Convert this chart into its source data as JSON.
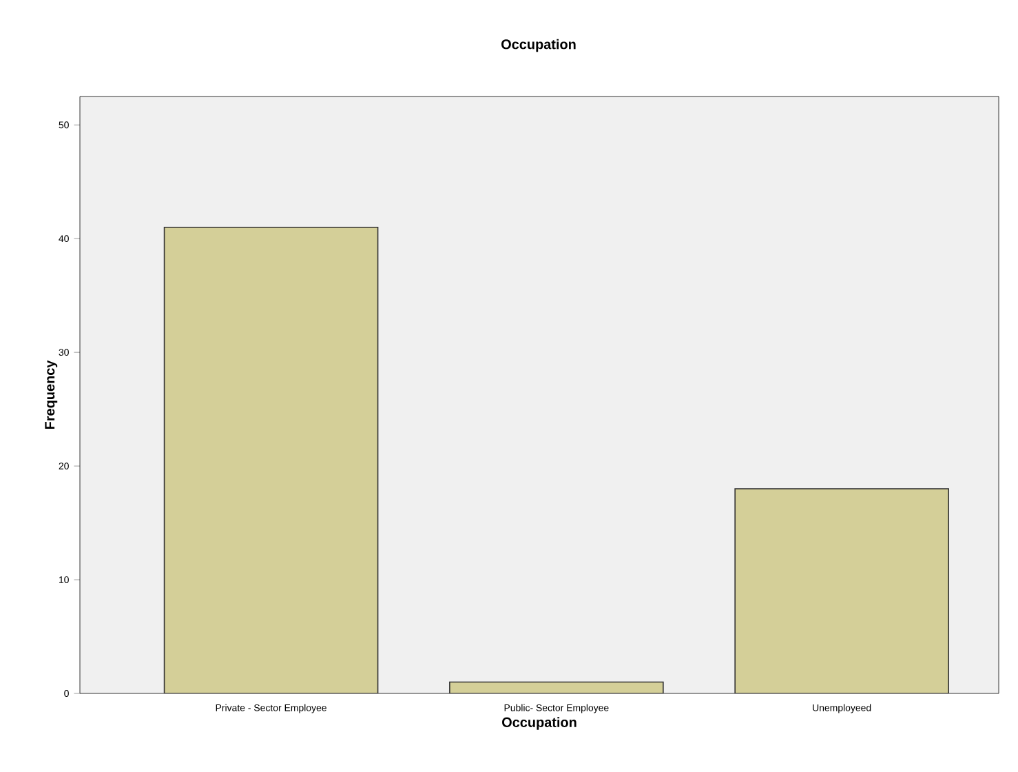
{
  "chart_data": {
    "type": "bar",
    "title": "Occupation",
    "xlabel": "Occupation",
    "ylabel": "Frequency",
    "categories": [
      "Private - Sector Employee",
      "Public- Sector Employee",
      "Unemployeed"
    ],
    "values": [
      41,
      1,
      18
    ],
    "color": "#d4cf98",
    "ylim": [
      0,
      52.5
    ],
    "yticks": [
      0,
      10,
      20,
      30,
      40,
      50
    ],
    "grid": false
  }
}
